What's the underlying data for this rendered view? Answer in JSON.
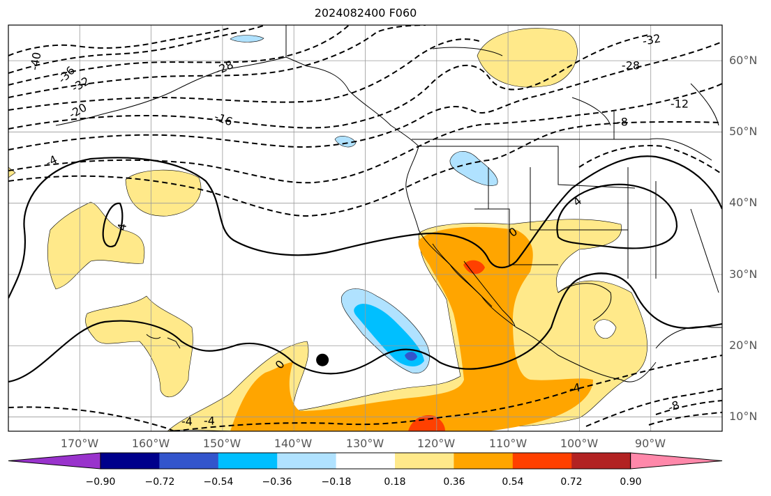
{
  "title": "2024082400 F060",
  "map": {
    "projection": "cylindrical",
    "extent": {
      "lon": [
        -180,
        -80
      ],
      "lat": [
        8,
        65
      ]
    },
    "lat_labels": [
      "60°N",
      "50°N",
      "40°N",
      "30°N",
      "20°N",
      "10°N"
    ],
    "lon_labels": [
      "170°W",
      "160°W",
      "150°W",
      "140°W",
      "130°W",
      "120°W",
      "110°W",
      "100°W",
      "90°W"
    ],
    "grid": true,
    "marker": {
      "name": "storm-center",
      "lon": -136,
      "lat": 18
    },
    "contour_labels": [
      "-40",
      "-36",
      "-32",
      "-28",
      "-20",
      "-16",
      "-4",
      "-32",
      "-28",
      "-12",
      "-8",
      "-4",
      "4",
      "0",
      "4",
      "0",
      "-4",
      "-4",
      "-8"
    ]
  },
  "colorbar": {
    "colors": [
      "#9933cc",
      "#00008b",
      "#3355cc",
      "#00bfff",
      "#b0e2ff",
      "#ffffff",
      "#ffe98a",
      "#ffa500",
      "#ff4000",
      "#b22222",
      "#ff88aa"
    ],
    "tick_labels": [
      "−0.90",
      "−0.72",
      "−0.54",
      "−0.36",
      "−0.18",
      "0.18",
      "0.36",
      "0.54",
      "0.72",
      "0.90"
    ]
  }
}
